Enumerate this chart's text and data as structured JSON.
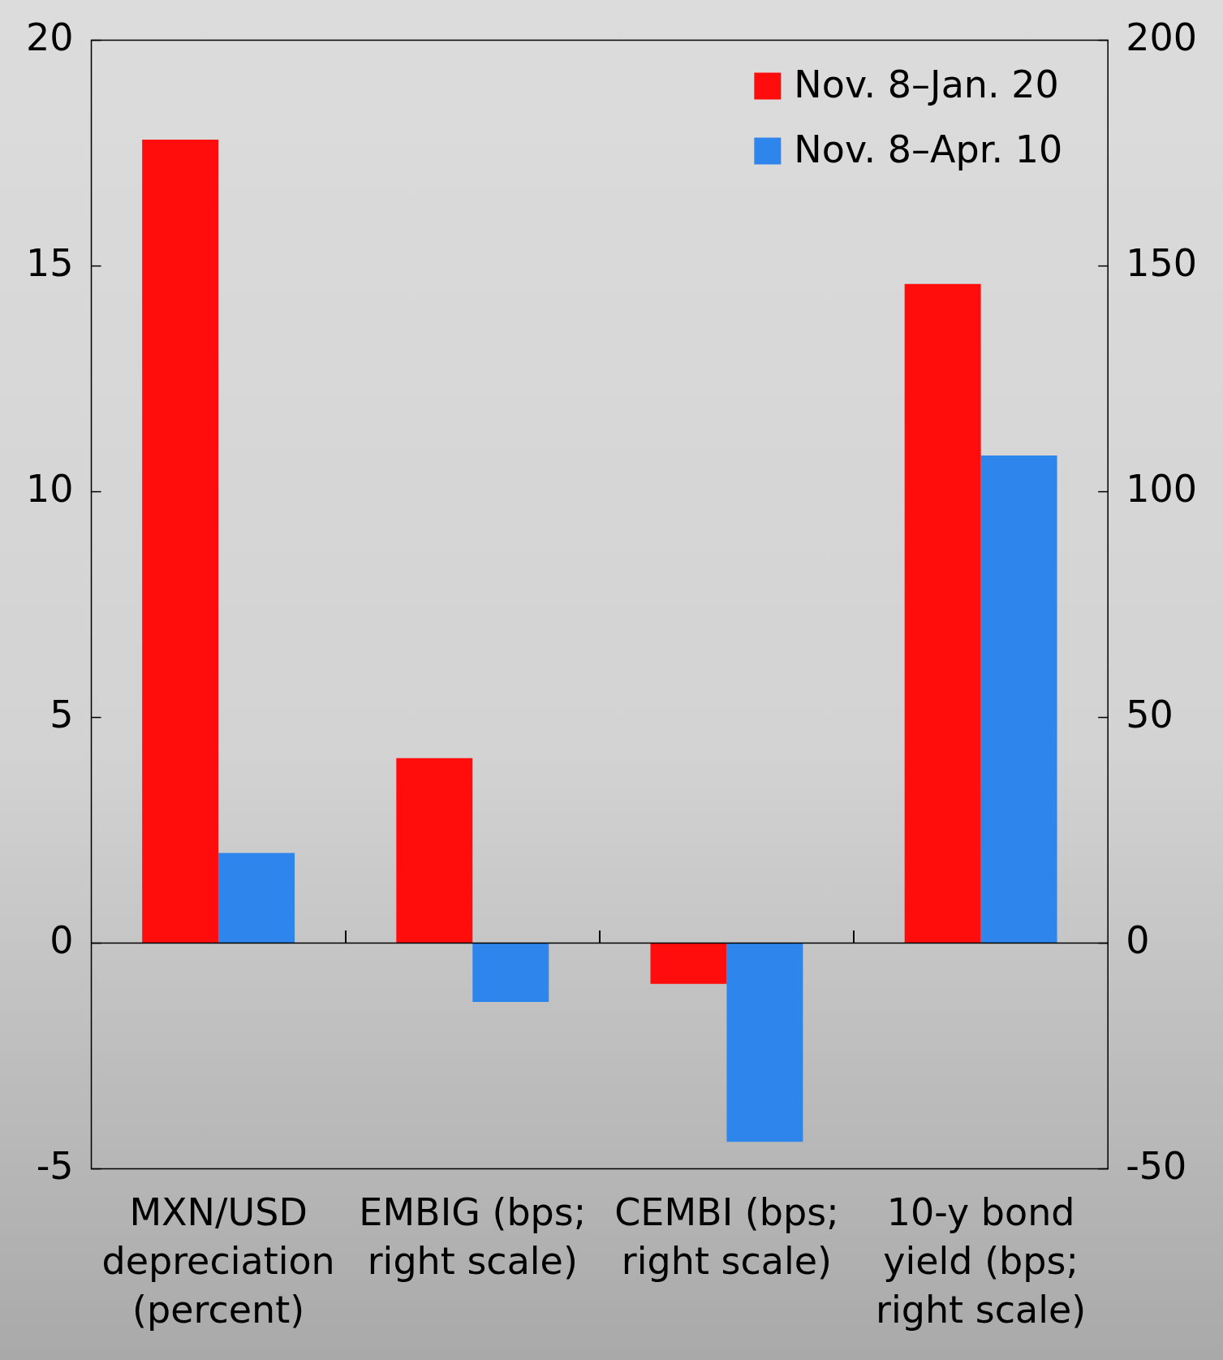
{
  "chart_data": {
    "type": "bar",
    "categories": [
      "MXN/USD depreciation (percent)",
      "EMBIG (bps; right scale)",
      "CEMBI (bps; right scale)",
      "10-y bond yield (bps; right scale)"
    ],
    "series": [
      {
        "name": "Nov. 8–Jan. 20",
        "color": "#ff0d0d",
        "values": [
          17.8,
          4.1,
          -0.9,
          14.6
        ]
      },
      {
        "name": "Nov. 8–Apr. 10",
        "color": "#2e86ec",
        "values": [
          2.0,
          -1.3,
          -4.4,
          10.8
        ]
      }
    ],
    "ylim": [
      -5,
      20
    ],
    "yticks": [
      -5,
      0,
      5,
      10,
      15,
      20
    ],
    "y2lim": [
      -50,
      200
    ],
    "y2ticks": [
      -50,
      0,
      50,
      100,
      150,
      200
    ],
    "legend": "top right"
  }
}
